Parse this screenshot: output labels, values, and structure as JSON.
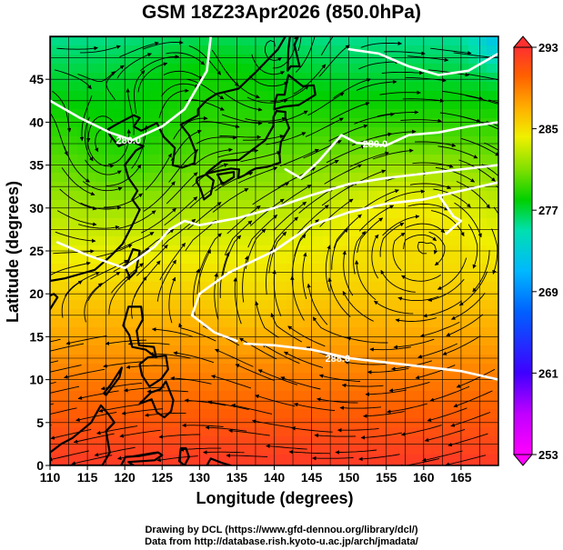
{
  "title": "GSM 18Z23Apr2026 (850.0hPa)",
  "xlabel": "Longitude (degrees)",
  "ylabel": "Latitude  (degrees)",
  "credit_line1": "Drawing by DCL (https://www.gfd-dennou.org/library/dcl/)",
  "credit_line2": "Data from http://database.rish.kyoto-u.ac.jp/arch/jmadata/",
  "chart_data": {
    "type": "heatmap",
    "variable": "temperature (K) with streamlines",
    "level": "850.0hPa",
    "x_range": [
      110,
      170
    ],
    "y_range": [
      0,
      50
    ],
    "x_ticks": [
      110,
      115,
      120,
      125,
      130,
      135,
      140,
      145,
      150,
      155,
      160,
      165
    ],
    "y_ticks": [
      0,
      5,
      10,
      15,
      20,
      25,
      30,
      35,
      40,
      45
    ],
    "grid": true,
    "colorbar": {
      "min": 253,
      "max": 293,
      "tick_labels": [
        "293",
        "285",
        "277",
        "269",
        "261",
        "253"
      ],
      "tick_values": [
        293,
        285,
        277,
        269,
        261,
        253
      ]
    },
    "contour_labels": [
      {
        "text": "280.0",
        "lon": 120.5,
        "lat": 37.9
      },
      {
        "text": "280.0",
        "lon": 153.5,
        "lat": 37.5
      },
      {
        "text": "288.0",
        "lon": 148.5,
        "lat": 12.5
      }
    ],
    "contours": [
      {
        "level": 280,
        "points": [
          [
            110,
            42.5
          ],
          [
            114,
            40.5
          ],
          [
            118,
            38.8
          ],
          [
            121,
            37.9
          ],
          [
            125,
            39.5
          ],
          [
            128,
            41.5
          ],
          [
            129,
            43
          ],
          [
            131,
            46
          ],
          [
            131.5,
            50
          ]
        ]
      },
      {
        "level": 280,
        "points": [
          [
            141.5,
            34.5
          ],
          [
            143.5,
            33.5
          ],
          [
            146,
            35.5
          ],
          [
            149,
            38.5
          ],
          [
            151,
            37.6
          ],
          [
            155,
            37.3
          ],
          [
            158,
            38.5
          ],
          [
            162,
            38.8
          ],
          [
            166,
            39.5
          ],
          [
            170,
            40
          ]
        ]
      },
      {
        "level": 280,
        "points": [
          [
            170,
            48
          ],
          [
            166,
            46
          ],
          [
            162,
            45.5
          ],
          [
            158,
            46.5
          ],
          [
            154,
            48
          ],
          [
            150,
            48.5
          ]
        ]
      },
      {
        "level": 284,
        "points": [
          [
            111,
            26
          ],
          [
            115,
            24.5
          ],
          [
            120,
            23
          ],
          [
            124,
            25.5
          ],
          [
            126,
            27.5
          ],
          [
            128,
            28.5
          ],
          [
            130,
            28
          ],
          [
            135,
            28.8
          ],
          [
            140,
            30
          ],
          [
            145,
            31.5
          ],
          [
            150,
            32.8
          ],
          [
            155,
            33.5
          ],
          [
            160,
            34
          ],
          [
            165,
            34.5
          ],
          [
            170,
            35
          ]
        ]
      },
      {
        "level": 288,
        "points": [
          [
            135,
            14.5
          ],
          [
            132,
            15.5
          ],
          [
            129,
            17.5
          ],
          [
            130,
            20
          ],
          [
            134,
            22.5
          ],
          [
            140,
            25
          ],
          [
            145,
            28
          ],
          [
            150,
            29.5
          ],
          [
            155,
            30.5
          ],
          [
            160,
            31
          ],
          [
            165,
            32
          ],
          [
            170,
            33
          ]
        ]
      },
      {
        "level": 288,
        "points": [
          [
            136,
            14.2
          ],
          [
            140,
            14
          ],
          [
            145,
            13.5
          ],
          [
            150,
            12.5
          ],
          [
            155,
            12
          ],
          [
            160,
            11.5
          ],
          [
            165,
            11
          ],
          [
            170,
            10
          ]
        ]
      },
      {
        "level": 288,
        "points": [
          [
            162,
            31.5
          ],
          [
            164,
            29
          ],
          [
            165,
            28.5
          ],
          [
            163,
            27
          ]
        ]
      }
    ],
    "land": [
      {
        "name": "asia",
        "points": [
          [
            110,
            21.5
          ],
          [
            112,
            21.8
          ],
          [
            114,
            22.3
          ],
          [
            116,
            22.8
          ],
          [
            118,
            24.3
          ],
          [
            119.7,
            25.8
          ],
          [
            121,
            28
          ],
          [
            122,
            29.8
          ],
          [
            121,
            31
          ],
          [
            121.7,
            32
          ],
          [
            120.5,
            33.5
          ],
          [
            120,
            35
          ],
          [
            121.5,
            36.7
          ],
          [
            122.5,
            37.2
          ],
          [
            120.7,
            37.8
          ],
          [
            119.2,
            37.2
          ],
          [
            118,
            38.5
          ],
          [
            117.8,
            39.2
          ],
          [
            119,
            39.8
          ],
          [
            121.2,
            40.8
          ],
          [
            122,
            40.5
          ],
          [
            121.2,
            39.5
          ],
          [
            122.2,
            39
          ],
          [
            124.3,
            39.9
          ],
          [
            125.2,
            38.3
          ],
          [
            126.7,
            37
          ],
          [
            126.4,
            35
          ],
          [
            127.7,
            34.7
          ],
          [
            129.3,
            35.2
          ],
          [
            129.5,
            36.5
          ],
          [
            128.6,
            38.5
          ],
          [
            127.5,
            39.7
          ],
          [
            129.8,
            40.8
          ],
          [
            129.8,
            41.5
          ],
          [
            131,
            42.6
          ],
          [
            132.3,
            43.3
          ],
          [
            135.2,
            43.9
          ],
          [
            137.5,
            45.8
          ],
          [
            140.5,
            48.5
          ],
          [
            141.5,
            50
          ],
          [
            110,
            50
          ]
        ]
      },
      {
        "name": "honshu",
        "points": [
          [
            130.9,
            34
          ],
          [
            131.4,
            34.4
          ],
          [
            133,
            35.5
          ],
          [
            135.3,
            35.6
          ],
          [
            136.2,
            36.2
          ],
          [
            137.1,
            36.8
          ],
          [
            138.8,
            37.9
          ],
          [
            139.9,
            39.6
          ],
          [
            139.9,
            40.6
          ],
          [
            140.3,
            41.3
          ],
          [
            141.5,
            41.2
          ],
          [
            141.5,
            40.5
          ],
          [
            142,
            39.3
          ],
          [
            140.9,
            37.7
          ],
          [
            140.7,
            36.3
          ],
          [
            140.8,
            35.3
          ],
          [
            139.8,
            35.0
          ],
          [
            139.1,
            34.8
          ],
          [
            137.5,
            34.6
          ],
          [
            136.8,
            34.3
          ],
          [
            136,
            33.8
          ],
          [
            135.2,
            33.5
          ],
          [
            135.3,
            34.5
          ],
          [
            134.2,
            34.6
          ],
          [
            132.4,
            34.3
          ]
        ]
      },
      {
        "name": "kyushu",
        "points": [
          [
            129.7,
            33.5
          ],
          [
            130.9,
            33.9
          ],
          [
            131.9,
            33.2
          ],
          [
            131.5,
            31.6
          ],
          [
            130.6,
            31
          ],
          [
            130.1,
            32.3
          ],
          [
            129.6,
            33.1
          ]
        ]
      },
      {
        "name": "shikoku",
        "points": [
          [
            132.4,
            33.9
          ],
          [
            134.6,
            34.2
          ],
          [
            134.6,
            33.6
          ],
          [
            133.1,
            32.8
          ]
        ]
      },
      {
        "name": "hokkaido",
        "points": [
          [
            140,
            41.5
          ],
          [
            141.2,
            41.8
          ],
          [
            143.3,
            42
          ],
          [
            145.5,
            43.2
          ],
          [
            145.3,
            44.3
          ],
          [
            143.8,
            44.2
          ],
          [
            141.9,
            45.5
          ],
          [
            141.6,
            44.3
          ],
          [
            141.4,
            43.2
          ],
          [
            140.4,
            43.2
          ],
          [
            140.1,
            42.4
          ]
        ]
      },
      {
        "name": "sakhalin",
        "points": [
          [
            141.8,
            46
          ],
          [
            142.2,
            46.5
          ],
          [
            143.4,
            46.5
          ],
          [
            142.7,
            49
          ],
          [
            143.2,
            50
          ],
          [
            142.1,
            50
          ],
          [
            141.9,
            48.5
          ]
        ]
      },
      {
        "name": "taiwan",
        "points": [
          [
            120.1,
            23
          ],
          [
            120.7,
            21.9
          ],
          [
            121.5,
            22.6
          ],
          [
            122,
            25
          ],
          [
            121.1,
            25.2
          ]
        ]
      },
      {
        "name": "hainan",
        "points": [
          [
            108.6,
            19.2
          ],
          [
            110.5,
            20
          ],
          [
            111,
            19.6
          ],
          [
            110,
            18.2
          ]
        ]
      },
      {
        "name": "luzon",
        "points": [
          [
            120.5,
            18.5
          ],
          [
            122.2,
            18.5
          ],
          [
            122.4,
            17
          ],
          [
            121.6,
            15.7
          ],
          [
            121.9,
            14
          ],
          [
            123.9,
            13.8
          ],
          [
            124.2,
            12.6
          ],
          [
            122.8,
            13.5
          ],
          [
            121,
            13.8
          ],
          [
            120.6,
            15.2
          ],
          [
            119.8,
            16.3
          ]
        ]
      },
      {
        "name": "mindanao",
        "points": [
          [
            122,
            7.2
          ],
          [
            123.5,
            8.5
          ],
          [
            124.8,
            8.9
          ],
          [
            125.5,
            9.8
          ],
          [
            126.5,
            7.6
          ],
          [
            126.2,
            6.3
          ],
          [
            125.3,
            5.6
          ],
          [
            124.3,
            6.2
          ],
          [
            123.6,
            7.7
          ]
        ]
      },
      {
        "name": "visayas",
        "points": [
          [
            122,
            11.8
          ],
          [
            123.1,
            12.6
          ],
          [
            125.5,
            12.8
          ],
          [
            125.8,
            11.2
          ],
          [
            124.9,
            10.1
          ],
          [
            123.3,
            9.2
          ],
          [
            122.3,
            10.5
          ]
        ]
      },
      {
        "name": "palawan",
        "points": [
          [
            117.2,
            8.4
          ],
          [
            118.1,
            9.4
          ],
          [
            119.6,
            11.4
          ],
          [
            119.3,
            10.3
          ],
          [
            117.5,
            8.2
          ]
        ]
      },
      {
        "name": "borneo",
        "points": [
          [
            110,
            1.5
          ],
          [
            111.5,
            2.5
          ],
          [
            113,
            3.2
          ],
          [
            115.5,
            5
          ],
          [
            116.8,
            7
          ],
          [
            117.8,
            6
          ],
          [
            118.6,
            5
          ],
          [
            117.5,
            4
          ],
          [
            118,
            1.5
          ],
          [
            117,
            0
          ],
          [
            110,
            0
          ]
        ]
      },
      {
        "name": "sulawesi",
        "points": [
          [
            119.5,
            0
          ],
          [
            120.1,
            1
          ],
          [
            122,
            1.1
          ],
          [
            124.5,
            1.5
          ],
          [
            125,
            1.2
          ],
          [
            124,
            0.6
          ],
          [
            120.5,
            0.4
          ],
          [
            121.2,
            0
          ]
        ]
      },
      {
        "name": "halmahera",
        "points": [
          [
            127.5,
            2
          ],
          [
            128.2,
            2
          ],
          [
            128.6,
            1
          ],
          [
            128,
            0
          ],
          [
            127.3,
            0.5
          ]
        ]
      },
      {
        "name": "new-guinea",
        "points": [
          [
            131,
            0
          ],
          [
            132.8,
            -0.3
          ],
          [
            134.2,
            0
          ],
          [
            133,
            0.3
          ],
          [
            131.5,
            0.8
          ]
        ]
      }
    ]
  }
}
